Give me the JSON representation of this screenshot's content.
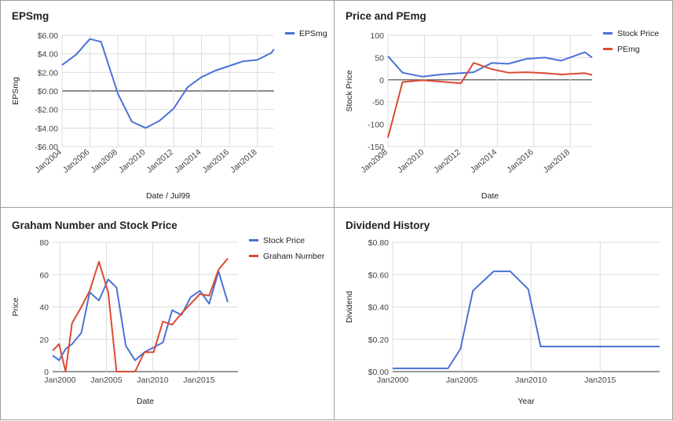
{
  "chart_data": [
    {
      "id": "eps",
      "type": "line",
      "title": "EPSmg",
      "xlabel": "Date / Jul99",
      "ylabel": "EPSmg",
      "x_ticks": [
        "Jan2004",
        "Jan2006",
        "Jan2008",
        "Jan2010",
        "Jan2012",
        "Jan2014",
        "Jan2016",
        "Jan2018"
      ],
      "x_tick_years": [
        2004,
        2006,
        2008,
        2010,
        2012,
        2014,
        2016,
        2018
      ],
      "xlim": [
        2004,
        2019.2
      ],
      "y_ticks": [
        "$6.00",
        "$4.00",
        "$2.00",
        "$0.00",
        "-$2.00",
        "-$4.00",
        "-$6.00"
      ],
      "y_tick_values": [
        6,
        4,
        2,
        0,
        -2,
        -4,
        -6
      ],
      "ylim": [
        -6,
        6
      ],
      "zero_line": true,
      "legend_position": "top-right",
      "series": [
        {
          "name": "EPSmg",
          "color": "#4a72d6",
          "points": [
            [
              2004,
              2.8
            ],
            [
              2005,
              3.9
            ],
            [
              2006,
              5.6
            ],
            [
              2006.8,
              5.3
            ],
            [
              2008,
              -0.3
            ],
            [
              2009,
              -3.3
            ],
            [
              2010,
              -4.0
            ],
            [
              2011,
              -3.2
            ],
            [
              2012,
              -1.9
            ],
            [
              2013,
              0.4
            ],
            [
              2014,
              1.5
            ],
            [
              2015,
              2.2
            ],
            [
              2016,
              2.7
            ],
            [
              2017,
              3.2
            ],
            [
              2018,
              3.35
            ],
            [
              2019,
              4.1
            ],
            [
              2019.2,
              4.5
            ]
          ]
        }
      ]
    },
    {
      "id": "pe",
      "type": "line",
      "title": "Price and PEmg",
      "xlabel": "Date",
      "ylabel": "Stock Price",
      "x_ticks": [
        "Jan2008",
        "Jan2010",
        "Jan2012",
        "Jan2014",
        "Jan2016",
        "Jan2018"
      ],
      "x_tick_years": [
        2008,
        2010,
        2012,
        2014,
        2016,
        2018
      ],
      "xlim": [
        2008,
        2019.2
      ],
      "y_ticks": [
        "100",
        "50",
        "0",
        "-50",
        "-100",
        "-150"
      ],
      "y_tick_values": [
        100,
        50,
        0,
        -50,
        -100,
        -150
      ],
      "ylim": [
        -150,
        100
      ],
      "zero_line": true,
      "legend_position": "top-right",
      "series": [
        {
          "name": "Stock Price",
          "color": "#4a72d6",
          "points": [
            [
              2008,
              53
            ],
            [
              2008.8,
              16
            ],
            [
              2009.9,
              7
            ],
            [
              2010.9,
              12
            ],
            [
              2012,
              15
            ],
            [
              2012.7,
              17
            ],
            [
              2013.7,
              38
            ],
            [
              2014.6,
              36
            ],
            [
              2015.6,
              47
            ],
            [
              2016.6,
              50
            ],
            [
              2017.5,
              43
            ],
            [
              2018.8,
              62
            ],
            [
              2019.2,
              50
            ]
          ]
        },
        {
          "name": "PEmg",
          "color": "#db4a32",
          "points": [
            [
              2008,
              -130
            ],
            [
              2008.8,
              -5
            ],
            [
              2009.9,
              -1
            ],
            [
              2010.9,
              -4
            ],
            [
              2012,
              -8
            ],
            [
              2012.7,
              38
            ],
            [
              2013.7,
              24
            ],
            [
              2014.6,
              16
            ],
            [
              2015.6,
              17
            ],
            [
              2016.6,
              15
            ],
            [
              2017.5,
              12
            ],
            [
              2018.8,
              15
            ],
            [
              2019.2,
              11
            ]
          ]
        }
      ]
    },
    {
      "id": "graham",
      "type": "line",
      "title": "Graham Number and Stock Price",
      "xlabel": "Date",
      "ylabel": "Price",
      "x_ticks": [
        "Jan2000",
        "Jan2005",
        "Jan2010",
        "Jan2015"
      ],
      "x_tick_years": [
        2000,
        2005,
        2010,
        2015
      ],
      "xlim": [
        1999.2,
        2019.2
      ],
      "y_ticks": [
        "80",
        "60",
        "40",
        "20",
        "0"
      ],
      "y_tick_values": [
        80,
        60,
        40,
        20,
        0
      ],
      "ylim": [
        0,
        80
      ],
      "zero_line": false,
      "legend_position": "top-right",
      "series": [
        {
          "name": "Stock Price",
          "color": "#4a72d6",
          "points": [
            [
              1999.2,
              10
            ],
            [
              1999.9,
              7
            ],
            [
              2000.6,
              14
            ],
            [
              2001.3,
              17
            ],
            [
              2002.3,
              24
            ],
            [
              2003.2,
              49
            ],
            [
              2004.2,
              44
            ],
            [
              2005.2,
              57
            ],
            [
              2006.1,
              52
            ],
            [
              2007.1,
              16
            ],
            [
              2008.1,
              7
            ],
            [
              2009.1,
              12
            ],
            [
              2010.1,
              15
            ],
            [
              2011.1,
              18
            ],
            [
              2012.1,
              38
            ],
            [
              2013.1,
              35
            ],
            [
              2014.1,
              46
            ],
            [
              2015.1,
              50
            ],
            [
              2016.1,
              42
            ],
            [
              2017.1,
              62
            ],
            [
              2018.1,
              43
            ]
          ]
        },
        {
          "name": "Graham Number",
          "color": "#db4a32",
          "points": [
            [
              1999.2,
              13
            ],
            [
              1999.9,
              17
            ],
            [
              2000.6,
              0
            ],
            [
              2001.3,
              30
            ],
            [
              2002.3,
              40
            ],
            [
              2003.2,
              50
            ],
            [
              2004.2,
              68
            ],
            [
              2005.2,
              49
            ],
            [
              2006.1,
              0
            ],
            [
              2007.1,
              0
            ],
            [
              2008.1,
              0
            ],
            [
              2009.1,
              12
            ],
            [
              2010.1,
              12
            ],
            [
              2011.1,
              31
            ],
            [
              2012.1,
              29
            ],
            [
              2013.1,
              36
            ],
            [
              2014.1,
              42
            ],
            [
              2015.1,
              48
            ],
            [
              2016.1,
              47
            ],
            [
              2017.1,
              63
            ],
            [
              2018.1,
              70
            ]
          ]
        }
      ]
    },
    {
      "id": "dividend",
      "type": "line",
      "title": "Dividend History",
      "xlabel": "Year",
      "ylabel": "Dividend",
      "x_ticks": [
        "Jan2000",
        "Jan2005",
        "Jan2010",
        "Jan2015"
      ],
      "x_tick_years": [
        2000,
        2005,
        2010,
        2015
      ],
      "xlim": [
        2000,
        2019.3
      ],
      "y_ticks": [
        "$0.80",
        "$0.60",
        "$0.40",
        "$0.20",
        "$0.00"
      ],
      "y_tick_values": [
        0.8,
        0.6,
        0.4,
        0.2,
        0
      ],
      "ylim": [
        0,
        0.8
      ],
      "zero_line": false,
      "legend_position": "none",
      "series": [
        {
          "name": "",
          "color": "#4a72d6",
          "points": [
            [
              2000,
              0.02
            ],
            [
              2001,
              0.02
            ],
            [
              2002,
              0.02
            ],
            [
              2003,
              0.02
            ],
            [
              2004,
              0.02
            ],
            [
              2004.9,
              0.14
            ],
            [
              2005.8,
              0.5
            ],
            [
              2007.3,
              0.62
            ],
            [
              2008.5,
              0.62
            ],
            [
              2009.8,
              0.51
            ],
            [
              2010.7,
              0.155
            ],
            [
              2012,
              0.155
            ],
            [
              2013,
              0.155
            ],
            [
              2014,
              0.155
            ],
            [
              2015,
              0.155
            ],
            [
              2016,
              0.155
            ],
            [
              2017,
              0.155
            ],
            [
              2018,
              0.155
            ],
            [
              2019.3,
              0.155
            ]
          ]
        }
      ]
    }
  ]
}
